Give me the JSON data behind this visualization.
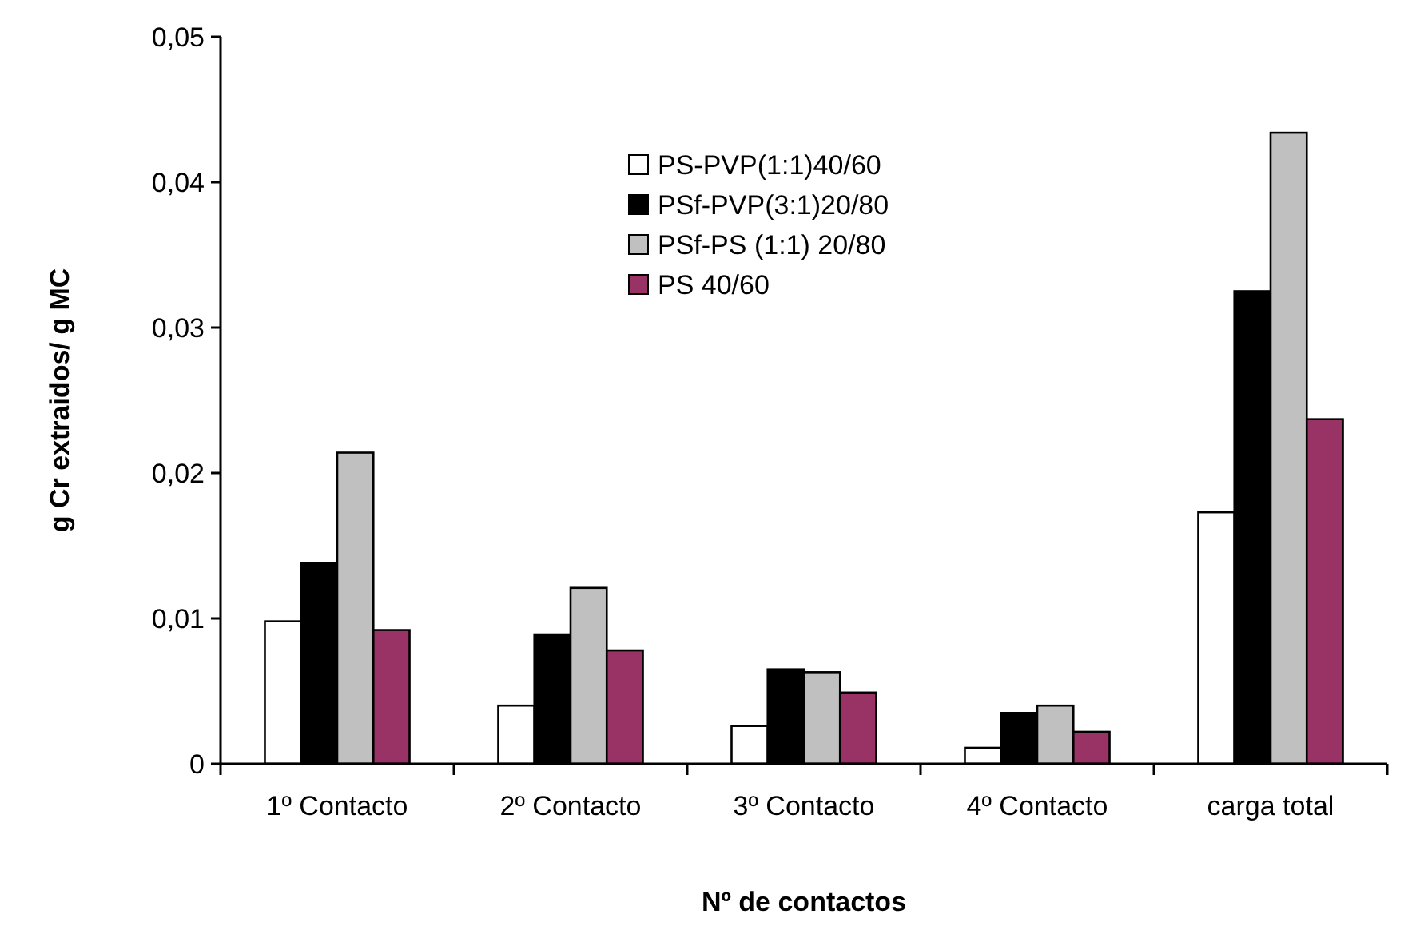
{
  "chart_data": {
    "type": "bar",
    "xlabel": "Nº de contactos",
    "ylabel": "g Cr extraidos/ g MC",
    "categories": [
      "1º Contacto",
      "2º Contacto",
      "3º Contacto",
      "4º Contacto",
      "carga total"
    ],
    "series": [
      {
        "name": "PS-PVP(1:1)40/60",
        "color": "#ffffff",
        "values": [
          0.0098,
          0.004,
          0.0026,
          0.0011,
          0.0173
        ]
      },
      {
        "name": "PSf-PVP(3:1)20/80",
        "color": "#000000",
        "values": [
          0.0138,
          0.0089,
          0.0065,
          0.0035,
          0.0325
        ]
      },
      {
        "name": "PSf-PS (1:1) 20/80",
        "color": "#c0c0c0",
        "values": [
          0.0214,
          0.0121,
          0.0063,
          0.004,
          0.0434
        ]
      },
      {
        "name": "PS 40/60",
        "color": "#993366",
        "values": [
          0.0092,
          0.0078,
          0.0049,
          0.0022,
          0.0237
        ]
      }
    ],
    "ylim": [
      0,
      0.05
    ],
    "yticks": [
      {
        "value": 0,
        "label": "0"
      },
      {
        "value": 0.01,
        "label": "0,01"
      },
      {
        "value": 0.02,
        "label": "0,02"
      },
      {
        "value": 0.03,
        "label": "0,03"
      },
      {
        "value": 0.04,
        "label": "0,04"
      },
      {
        "value": 0.05,
        "label": "0,05"
      }
    ],
    "grid": false,
    "legend": "top"
  }
}
